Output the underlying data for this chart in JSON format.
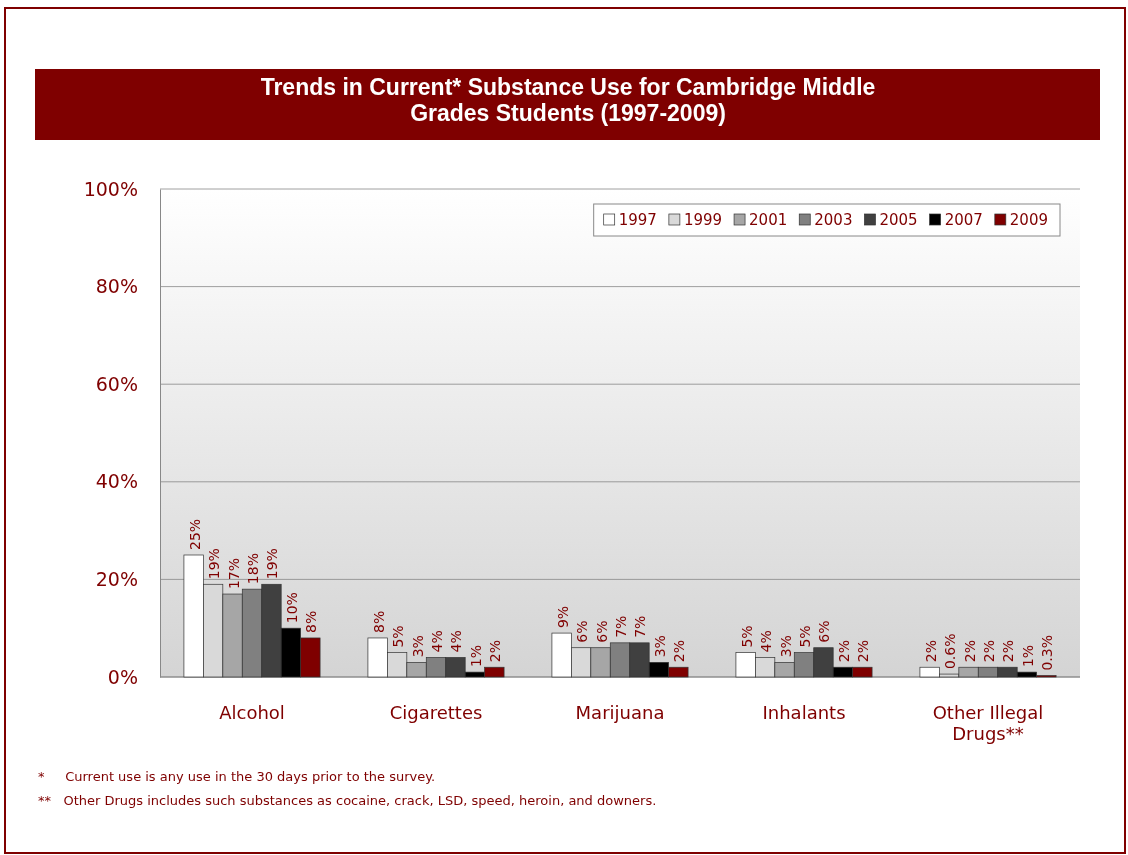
{
  "chart_data": {
    "type": "bar",
    "title": "Trends in Current* Substance Use for Cambridge Middle Grades Students (1997-2009)",
    "categories": [
      "Alcohol",
      "Cigarettes",
      "Marijuana",
      "Inhalants",
      "Other Illegal Drugs**"
    ],
    "series": [
      {
        "name": "1997",
        "color": "#ffffff",
        "values": [
          25,
          8,
          9,
          5,
          2
        ],
        "value_labels": [
          "25%",
          "8%",
          "9%",
          "5%",
          "2%"
        ]
      },
      {
        "name": "1999",
        "color": "#d9d9d9",
        "values": [
          19,
          5,
          6,
          4,
          0.6
        ],
        "value_labels": [
          "19%",
          "5%",
          "6%",
          "4%",
          "0.6%"
        ]
      },
      {
        "name": "2001",
        "color": "#a6a6a6",
        "values": [
          17,
          3,
          6,
          3,
          2
        ],
        "value_labels": [
          "17%",
          "3%",
          "6%",
          "3%",
          "2%"
        ]
      },
      {
        "name": "2003",
        "color": "#808080",
        "values": [
          18,
          4,
          7,
          5,
          2
        ],
        "value_labels": [
          "18%",
          "4%",
          "7%",
          "5%",
          "2%"
        ]
      },
      {
        "name": "2005",
        "color": "#404040",
        "values": [
          19,
          4,
          7,
          6,
          2
        ],
        "value_labels": [
          "19%",
          "4%",
          "7%",
          "6%",
          "2%"
        ]
      },
      {
        "name": "2007",
        "color": "#000000",
        "values": [
          10,
          1,
          3,
          2,
          1
        ],
        "value_labels": [
          "10%",
          "1%",
          "3%",
          "2%",
          "1%"
        ]
      },
      {
        "name": "2009",
        "color": "#7f0000",
        "values": [
          8,
          2,
          2,
          2,
          0.3
        ],
        "value_labels": [
          "8%",
          "2%",
          "2%",
          "2%",
          "0.3%"
        ]
      }
    ],
    "ylim": [
      0,
      100
    ],
    "yticks": [
      {
        "value": 0,
        "label": "0%"
      },
      {
        "value": 20,
        "label": "20%"
      },
      {
        "value": 40,
        "label": "40%"
      },
      {
        "value": 60,
        "label": "60%"
      },
      {
        "value": 80,
        "label": "80%"
      },
      {
        "value": 100,
        "label": "100%"
      }
    ],
    "grid": "y",
    "legend": "top right",
    "annotations": [
      "*     Current use is any use in the 30 days prior to the survey.",
      "**   Other Drugs includes such substances as cocaine, crack, LSD, speed, heroin, and downers."
    ]
  }
}
